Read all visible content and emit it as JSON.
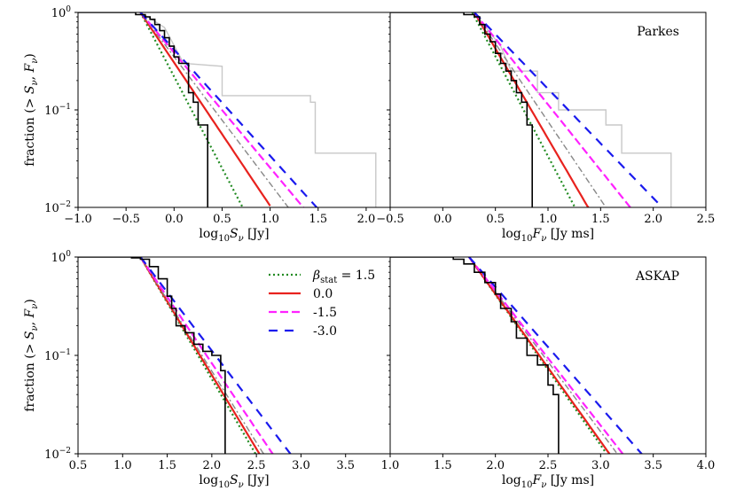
{
  "colors": {
    "observed": "#000000",
    "observed_alt": "#c8c8c8",
    "beta_1_5": "#228B22",
    "beta_0_0": "#e8221e",
    "beta_m1_5": "#ff22ff",
    "beta_m3_0": "#1a1aee",
    "reference": "#888888"
  },
  "chart_data": [
    {
      "type": "line",
      "panel": "top-left",
      "annotation": "",
      "xlabel": "log$_{10}S_\\nu$ [Jy]",
      "xlabel_main": "log",
      "xlabel_sub": "10",
      "xlabel_var": "S",
      "xlabel_varsub": "ν",
      "xlabel_unit": " [Jy]",
      "ylabel": "fraction (> S_ν, F_ν)",
      "xlim": [
        -1.0,
        2.25
      ],
      "ylim": [
        0.01,
        1
      ],
      "yscale": "log",
      "xticks": [
        "−1.0",
        "−0.5",
        "0.0",
        "0.5",
        "1.0",
        "1.5",
        "2.0"
      ],
      "xtick_values": [
        -1.0,
        -0.5,
        0.0,
        0.5,
        1.0,
        1.5,
        2.0
      ],
      "yticks": [
        "10^{-2}",
        "10^{-1}",
        "10^{0}"
      ],
      "series": [
        {
          "style": "beta_1_5",
          "x0": -0.35,
          "slope": -1.88,
          "x1": 0.75
        },
        {
          "style": "beta_0_0",
          "x0": -0.35,
          "slope": -1.47,
          "x1": 1.0
        },
        {
          "style": "reference",
          "x0": -0.35,
          "slope": -1.3,
          "x1": 1.2
        },
        {
          "style": "beta_m1_5",
          "x0": -0.35,
          "slope": -1.18,
          "x1": 1.35
        },
        {
          "style": "beta_m3_0",
          "x0": -0.35,
          "slope": -1.09,
          "x1": 1.5
        }
      ],
      "steps_observed": [
        [
          -1.0,
          1.0
        ],
        [
          -0.55,
          1.0
        ],
        [
          -0.4,
          0.95
        ],
        [
          -0.3,
          0.9
        ],
        [
          -0.25,
          0.85
        ],
        [
          -0.2,
          0.75
        ],
        [
          -0.15,
          0.65
        ],
        [
          -0.1,
          0.55
        ],
        [
          -0.05,
          0.45
        ],
        [
          0.0,
          0.35
        ],
        [
          0.05,
          0.3
        ],
        [
          0.15,
          0.28
        ],
        [
          0.15,
          0.15
        ],
        [
          0.2,
          0.12
        ],
        [
          0.25,
          0.07
        ],
        [
          0.35,
          0.04
        ],
        [
          0.35,
          0.01
        ]
      ],
      "steps_alt": [
        [
          -0.35,
          1.0
        ],
        [
          -0.1,
          0.7
        ],
        [
          0.1,
          0.3
        ],
        [
          0.5,
          0.28
        ],
        [
          0.5,
          0.14
        ],
        [
          1.42,
          0.14
        ],
        [
          1.42,
          0.12
        ],
        [
          1.47,
          0.12
        ],
        [
          1.47,
          0.036
        ],
        [
          2.1,
          0.036
        ],
        [
          2.1,
          0.01
        ]
      ]
    },
    {
      "type": "line",
      "panel": "top-right",
      "annotation": "Parkes",
      "xlabel_main": "log",
      "xlabel_sub": "10",
      "xlabel_var": "F",
      "xlabel_varsub": "ν",
      "xlabel_unit": " [Jy ms]",
      "xlim": [
        -0.5,
        2.5
      ],
      "ylim": [
        0.01,
        1
      ],
      "yscale": "log",
      "xticks": [
        "−0.5",
        "0.0",
        "0.5",
        "1.0",
        "1.5",
        "2.0",
        "2.5"
      ],
      "xtick_values": [
        -0.5,
        0.0,
        0.5,
        1.0,
        1.5,
        2.0,
        2.5
      ],
      "series": [
        {
          "style": "beta_1_5",
          "x0": 0.28,
          "slope": -2.05,
          "x1": 1.25
        },
        {
          "style": "beta_0_0",
          "x0": 0.3,
          "slope": -1.85,
          "x1": 1.4
        },
        {
          "style": "reference",
          "x0": 0.3,
          "slope": -1.6,
          "x1": 1.6
        },
        {
          "style": "beta_m1_5",
          "x0": 0.3,
          "slope": -1.35,
          "x1": 1.9
        },
        {
          "style": "beta_m3_0",
          "x0": 0.3,
          "slope": -1.12,
          "x1": 2.1
        }
      ],
      "steps_observed": [
        [
          -0.5,
          1.0
        ],
        [
          0.05,
          1.0
        ],
        [
          0.2,
          0.95
        ],
        [
          0.3,
          0.9
        ],
        [
          0.35,
          0.75
        ],
        [
          0.4,
          0.6
        ],
        [
          0.45,
          0.5
        ],
        [
          0.5,
          0.38
        ],
        [
          0.55,
          0.3
        ],
        [
          0.6,
          0.25
        ],
        [
          0.65,
          0.2
        ],
        [
          0.7,
          0.15
        ],
        [
          0.75,
          0.12
        ],
        [
          0.8,
          0.07
        ],
        [
          0.85,
          0.035
        ],
        [
          0.85,
          0.01
        ]
      ],
      "steps_alt": [
        [
          0.3,
          1.0
        ],
        [
          0.55,
          0.45
        ],
        [
          0.65,
          0.25
        ],
        [
          0.9,
          0.25
        ],
        [
          0.9,
          0.15
        ],
        [
          1.1,
          0.15
        ],
        [
          1.1,
          0.1
        ],
        [
          1.55,
          0.1
        ],
        [
          1.55,
          0.07
        ],
        [
          1.7,
          0.07
        ],
        [
          1.7,
          0.036
        ],
        [
          2.17,
          0.036
        ],
        [
          2.17,
          0.01
        ]
      ]
    },
    {
      "type": "line",
      "panel": "bottom-left",
      "annotation": "",
      "xlabel_main": "log",
      "xlabel_sub": "10",
      "xlabel_var": "S",
      "xlabel_varsub": "ν",
      "xlabel_unit": " [Jy]",
      "ylabel": "fraction (> S_ν, F_ν)",
      "xlim": [
        0.5,
        4.0
      ],
      "ylim": [
        0.01,
        1
      ],
      "yscale": "log",
      "xticks": [
        "0.5",
        "1.0",
        "1.5",
        "2.0",
        "2.5",
        "3.0",
        "3.5"
      ],
      "xtick_values": [
        0.5,
        1.0,
        1.5,
        2.0,
        2.5,
        3.0,
        3.5
      ],
      "series": [
        {
          "style": "beta_1_5",
          "x0": 1.2,
          "slope": -1.55,
          "x1": 2.5
        },
        {
          "style": "beta_0_0",
          "x0": 1.2,
          "slope": -1.5,
          "x1": 2.55
        },
        {
          "style": "reference",
          "x0": 1.2,
          "slope": -1.45,
          "x1": 2.6
        },
        {
          "style": "beta_m1_5",
          "x0": 1.2,
          "slope": -1.35,
          "x1": 2.7
        },
        {
          "style": "beta_m3_0",
          "x0": 1.2,
          "slope": -1.19,
          "x1": 2.9
        }
      ],
      "steps_observed": [
        [
          0.5,
          1.0
        ],
        [
          0.9,
          1.0
        ],
        [
          1.1,
          0.98
        ],
        [
          1.2,
          0.95
        ],
        [
          1.3,
          0.8
        ],
        [
          1.4,
          0.6
        ],
        [
          1.5,
          0.4
        ],
        [
          1.55,
          0.3
        ],
        [
          1.6,
          0.2
        ],
        [
          1.7,
          0.17
        ],
        [
          1.8,
          0.13
        ],
        [
          1.9,
          0.11
        ],
        [
          2.0,
          0.1
        ],
        [
          2.1,
          0.07
        ],
        [
          2.15,
          0.04
        ],
        [
          2.15,
          0.01
        ]
      ],
      "steps_alt": []
    },
    {
      "type": "line",
      "panel": "bottom-right",
      "annotation": "ASKAP",
      "xlabel_main": "log",
      "xlabel_sub": "10",
      "xlabel_var": "F",
      "xlabel_varsub": "ν",
      "xlabel_unit": " [Jy ms]",
      "xlim": [
        1.0,
        4.0
      ],
      "ylim": [
        0.01,
        1
      ],
      "yscale": "log",
      "xticks": [
        "1.0",
        "1.5",
        "2.0",
        "2.5",
        "3.0",
        "3.5",
        "4.0"
      ],
      "xtick_values": [
        1.0,
        1.5,
        2.0,
        2.5,
        3.0,
        3.5,
        4.0
      ],
      "series": [
        {
          "style": "beta_1_5",
          "x0": 1.75,
          "slope": -1.53,
          "x1": 3.05
        },
        {
          "style": "beta_0_0",
          "x0": 1.75,
          "slope": -1.5,
          "x1": 3.1
        },
        {
          "style": "reference",
          "x0": 1.75,
          "slope": -1.42,
          "x1": 3.15
        },
        {
          "style": "beta_m1_5",
          "x0": 1.75,
          "slope": -1.37,
          "x1": 3.25
        },
        {
          "style": "beta_m3_0",
          "x0": 1.75,
          "slope": -1.22,
          "x1": 3.4
        }
      ],
      "steps_observed": [
        [
          1.0,
          1.0
        ],
        [
          1.5,
          1.0
        ],
        [
          1.6,
          0.95
        ],
        [
          1.7,
          0.85
        ],
        [
          1.8,
          0.7
        ],
        [
          1.9,
          0.55
        ],
        [
          2.0,
          0.42
        ],
        [
          2.05,
          0.3
        ],
        [
          2.15,
          0.22
        ],
        [
          2.2,
          0.15
        ],
        [
          2.3,
          0.1
        ],
        [
          2.4,
          0.08
        ],
        [
          2.5,
          0.05
        ],
        [
          2.55,
          0.04
        ],
        [
          2.6,
          0.025
        ],
        [
          2.6,
          0.01
        ]
      ],
      "steps_alt": []
    }
  ],
  "legend": {
    "placement": "upper-right of bottom-left panel",
    "entries": [
      {
        "style": "beta_1_5",
        "label_prefix": "β",
        "label_sub": "stat",
        "label_suffix": " = 1.5"
      },
      {
        "style": "beta_0_0",
        "label": "0.0"
      },
      {
        "style": "beta_m1_5",
        "label": "-1.5"
      },
      {
        "style": "beta_m3_0",
        "label": "-3.0"
      }
    ]
  }
}
